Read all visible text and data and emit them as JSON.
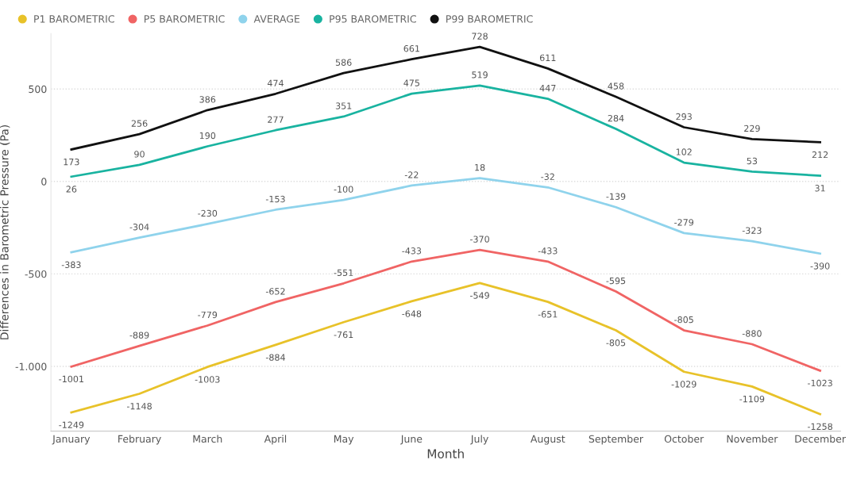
{
  "chart_data": {
    "type": "line",
    "xlabel": "Month",
    "ylabel": "Differences in Barometric Pressure (Pa)",
    "categories": [
      "January",
      "February",
      "March",
      "April",
      "May",
      "June",
      "July",
      "August",
      "September",
      "October",
      "November",
      "December"
    ],
    "series": [
      {
        "name": "P1 BAROMETRIC",
        "color": "#e8c229",
        "values": [
          -1249,
          -1148,
          -1003,
          -884,
          -761,
          -648,
          -549,
          -651,
          -805,
          -1029,
          -1109,
          -1258
        ]
      },
      {
        "name": "P5 BAROMETRIC",
        "color": "#f06464",
        "values": [
          -1001,
          -889,
          -779,
          -652,
          -551,
          -433,
          -370,
          -433,
          -595,
          -805,
          -880,
          -1023
        ]
      },
      {
        "name": "AVERAGE",
        "color": "#8fd3ec",
        "values": [
          -383,
          -304,
          -230,
          -153,
          -100,
          -22,
          18,
          -32,
          -139,
          -279,
          -323,
          -390
        ]
      },
      {
        "name": "P95 BAROMETRIC",
        "color": "#19b3a0",
        "values": [
          26,
          90,
          190,
          277,
          351,
          475,
          519,
          447,
          284,
          102,
          53,
          31
        ]
      },
      {
        "name": "P99 BAROMETRIC",
        "color": "#111111",
        "values": [
          173,
          256,
          386,
          474,
          586,
          661,
          728,
          611,
          458,
          293,
          229,
          212
        ]
      }
    ],
    "ylim": [
      -1350,
      800
    ],
    "yticks": [
      {
        "value": -1000,
        "label": "-1.000"
      },
      -500,
      0,
      500
    ],
    "grid": "y",
    "legend": "top left",
    "data_labels": true,
    "marker": "none",
    "line_style": "solid"
  }
}
